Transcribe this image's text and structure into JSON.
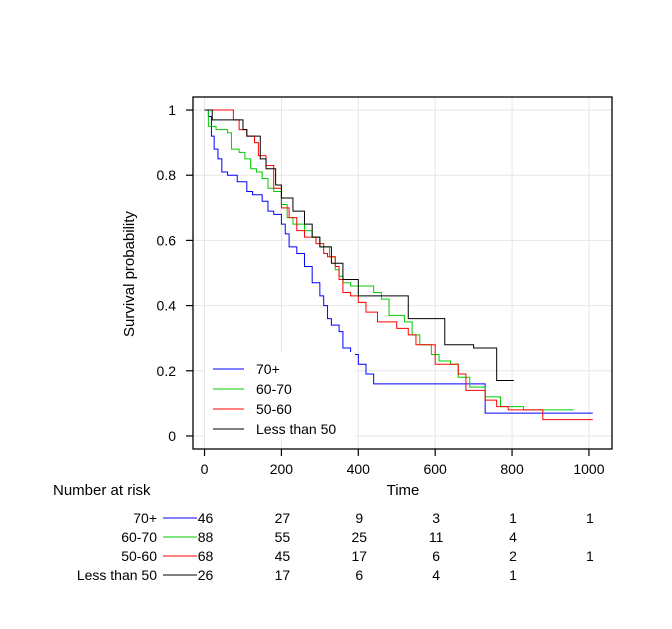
{
  "chart_data": {
    "type": "line",
    "subtype": "kaplan-meier step",
    "xlabel": "Time",
    "ylabel": "Survival probability",
    "xlim": [
      -30,
      1060
    ],
    "ylim": [
      -0.04,
      1.04
    ],
    "xticks": [
      "0",
      "200",
      "400",
      "600",
      "800",
      "1000"
    ],
    "yticks": [
      "0",
      "0.2",
      "0.4",
      "0.6",
      "0.8",
      "1"
    ],
    "grid": true,
    "legend_position": "bottom-left",
    "series": [
      {
        "name": "70+",
        "color": "#0000ff",
        "x": [
          0,
          10,
          18,
          25,
          35,
          45,
          60,
          85,
          110,
          125,
          150,
          165,
          180,
          200,
          210,
          220,
          240,
          260,
          280,
          300,
          310,
          320,
          330,
          350,
          360,
          380,
          400,
          420,
          440,
          730,
          1010
        ],
        "y": [
          1.0,
          0.98,
          0.92,
          0.88,
          0.85,
          0.81,
          0.8,
          0.78,
          0.75,
          0.74,
          0.72,
          0.69,
          0.68,
          0.65,
          0.62,
          0.58,
          0.56,
          0.52,
          0.47,
          0.43,
          0.4,
          0.36,
          0.34,
          0.32,
          0.27,
          0.25,
          0.22,
          0.19,
          0.16,
          0.07,
          0.07
        ]
      },
      {
        "name": "60-70",
        "color": "#00cc00",
        "x": [
          0,
          10,
          30,
          60,
          70,
          90,
          105,
          120,
          135,
          150,
          165,
          180,
          200,
          215,
          230,
          260,
          280,
          300,
          325,
          340,
          350,
          360,
          380,
          400,
          440,
          460,
          480,
          520,
          540,
          560,
          590,
          610,
          640,
          660,
          690,
          730,
          770,
          830,
          870,
          960
        ],
        "y": [
          1.0,
          0.95,
          0.94,
          0.93,
          0.88,
          0.87,
          0.85,
          0.82,
          0.81,
          0.79,
          0.76,
          0.75,
          0.71,
          0.67,
          0.65,
          0.63,
          0.61,
          0.58,
          0.55,
          0.51,
          0.49,
          0.47,
          0.46,
          0.46,
          0.44,
          0.42,
          0.37,
          0.35,
          0.31,
          0.28,
          0.25,
          0.23,
          0.22,
          0.18,
          0.15,
          0.12,
          0.09,
          0.08,
          0.08,
          0.08
        ]
      },
      {
        "name": "50-60",
        "color": "#ff0000",
        "x": [
          0,
          75,
          90,
          110,
          130,
          140,
          160,
          180,
          200,
          220,
          240,
          260,
          290,
          310,
          320,
          340,
          350,
          360,
          380,
          400,
          420,
          450,
          500,
          530,
          550,
          600,
          660,
          680,
          730,
          760,
          790,
          880,
          1010
        ],
        "y": [
          1.0,
          0.97,
          0.94,
          0.92,
          0.9,
          0.86,
          0.83,
          0.76,
          0.7,
          0.67,
          0.63,
          0.61,
          0.59,
          0.56,
          0.55,
          0.52,
          0.48,
          0.44,
          0.43,
          0.41,
          0.38,
          0.35,
          0.33,
          0.31,
          0.28,
          0.22,
          0.19,
          0.14,
          0.11,
          0.09,
          0.08,
          0.05,
          0.05
        ]
      },
      {
        "name": "Less than 50",
        "color": "#000000",
        "x": [
          0,
          20,
          100,
          110,
          145,
          160,
          185,
          200,
          230,
          260,
          280,
          300,
          330,
          360,
          400,
          420,
          440,
          530,
          625,
          700,
          760,
          805
        ],
        "y": [
          1.0,
          0.97,
          0.94,
          0.92,
          0.85,
          0.82,
          0.77,
          0.73,
          0.69,
          0.65,
          0.61,
          0.58,
          0.53,
          0.48,
          0.43,
          0.43,
          0.43,
          0.36,
          0.28,
          0.27,
          0.17,
          0.17
        ]
      }
    ]
  },
  "risk_table": {
    "title": "Number at risk",
    "times": [
      0,
      200,
      400,
      600,
      800,
      1000
    ],
    "rows": [
      {
        "label": "70+",
        "color": "#0000ff",
        "counts": [
          "46",
          "27",
          "9",
          "3",
          "1",
          "1"
        ]
      },
      {
        "label": "60-70",
        "color": "#00cc00",
        "counts": [
          "88",
          "55",
          "25",
          "11",
          "4",
          ""
        ]
      },
      {
        "label": "50-60",
        "color": "#ff0000",
        "counts": [
          "68",
          "45",
          "17",
          "6",
          "2",
          "1"
        ]
      },
      {
        "label": "Less than 50",
        "color": "#000000",
        "counts": [
          "26",
          "17",
          "6",
          "4",
          "1",
          ""
        ]
      }
    ]
  }
}
